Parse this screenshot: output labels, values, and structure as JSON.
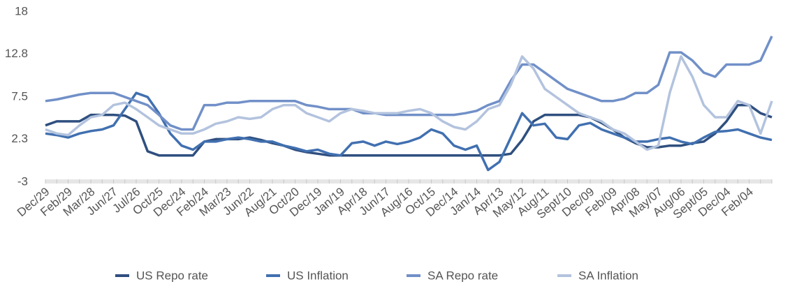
{
  "chart_data": {
    "type": "line",
    "categories": [
      "Dec/29",
      null,
      "Feb/29",
      null,
      "Mar/28",
      null,
      "Jun/27",
      null,
      "Jul/26",
      null,
      "Oct/25",
      null,
      "Dec/24",
      null,
      "Feb/24",
      null,
      "Mar/23",
      null,
      "Jun/22",
      null,
      "Aug/21",
      null,
      "Oct/20",
      null,
      "Dec/19",
      null,
      "Jan/19",
      null,
      "Apr/18",
      null,
      "Jun/17",
      null,
      "Aug/16",
      null,
      "Oct/15",
      null,
      "Dec/14",
      null,
      "Jan/14",
      null,
      "Apr/13",
      null,
      "May/12",
      null,
      "Aug/11",
      null,
      "Sept/10",
      null,
      "Dec/09",
      null,
      "Feb/09",
      null,
      "Apr/08",
      null,
      "May/07",
      null,
      "Aug/06",
      null,
      "Sept/05",
      null,
      "Dec/04",
      null,
      "Feb/04",
      null,
      null
    ],
    "series": [
      {
        "name": "US Repo rate",
        "color": "#2f4f7f",
        "values": [
          4,
          4.5,
          4.5,
          4.5,
          5.3,
          5.3,
          5.3,
          5.2,
          4.5,
          0.8,
          0.3,
          0.3,
          0.3,
          0.3,
          2,
          2.3,
          2.3,
          2.3,
          2.5,
          2.2,
          1.8,
          1.5,
          1,
          0.7,
          0.5,
          0.3,
          0.3,
          0.3,
          0.3,
          0.3,
          0.3,
          0.3,
          0.3,
          0.3,
          0.3,
          0.3,
          0.3,
          0.3,
          0.3,
          0.3,
          0.3,
          0.5,
          2.2,
          4.5,
          5.3,
          5.3,
          5.3,
          5.3,
          5,
          4.3,
          3.5,
          2.5,
          1.8,
          1.3,
          1.3,
          1.5,
          1.5,
          1.8,
          2,
          3,
          4.5,
          6.5,
          6.5,
          5.5,
          5
        ]
      },
      {
        "name": "US Inflation",
        "color": "#4170b0",
        "values": [
          3,
          2.8,
          2.5,
          3,
          3.3,
          3.5,
          4,
          6,
          8,
          7.5,
          5.5,
          3,
          1.5,
          1,
          2,
          2,
          2.3,
          2.5,
          2.3,
          2,
          2,
          1.5,
          1.2,
          0.8,
          1,
          0.5,
          0.3,
          1.8,
          2,
          1.5,
          2,
          1.7,
          2,
          2.5,
          3.5,
          3,
          1.5,
          1,
          1.5,
          -1.5,
          -0.5,
          2.5,
          5.5,
          4,
          4.2,
          2.5,
          2.3,
          4,
          4.3,
          3.5,
          3,
          2.5,
          2,
          2,
          2.3,
          2.5,
          2,
          1.7,
          2.5,
          3.2,
          3.3,
          3.5,
          3,
          2.5,
          2.2
        ]
      },
      {
        "name": "SA Repo rate",
        "color": "#7190c8",
        "values": [
          7,
          7.2,
          7.5,
          7.8,
          8,
          8,
          8,
          7.5,
          7,
          6.5,
          5.3,
          4,
          3.5,
          3.5,
          6.5,
          6.5,
          6.8,
          6.8,
          7,
          7,
          7,
          7,
          7,
          6.5,
          6.3,
          6,
          6,
          6,
          5.5,
          5.5,
          5.3,
          5.3,
          5.3,
          5.3,
          5.3,
          5.3,
          5.3,
          5.5,
          5.8,
          6.5,
          7,
          9.5,
          11.5,
          11.5,
          10.5,
          9.5,
          8.5,
          8,
          7.5,
          7,
          7,
          7.3,
          8,
          8,
          9,
          13,
          13,
          12,
          10.5,
          10,
          11.5,
          11.5,
          11.5,
          12,
          15
        ]
      },
      {
        "name": "SA Inflation",
        "color": "#b3c3de",
        "values": [
          3.5,
          3,
          2.8,
          4,
          5,
          5.3,
          6.5,
          6.8,
          6,
          5,
          4,
          3.5,
          3,
          3,
          3.5,
          4.2,
          4.5,
          5,
          4.8,
          5,
          6,
          6.5,
          6.5,
          5.5,
          5,
          4.5,
          5.5,
          6,
          5.8,
          5.5,
          5.5,
          5.5,
          5.8,
          6,
          5.5,
          4.5,
          3.8,
          3.5,
          4.5,
          6,
          6.5,
          9,
          12.5,
          11,
          8.5,
          7.5,
          6.5,
          5.5,
          5,
          4.5,
          3.5,
          3,
          2,
          1,
          1.5,
          8,
          12.5,
          10,
          6.5,
          5,
          5,
          7,
          6.5,
          3,
          7
        ]
      }
    ],
    "ylim": [
      -3,
      18
    ],
    "yticks": [
      -3,
      2.3,
      7.5,
      12.8,
      18
    ]
  }
}
